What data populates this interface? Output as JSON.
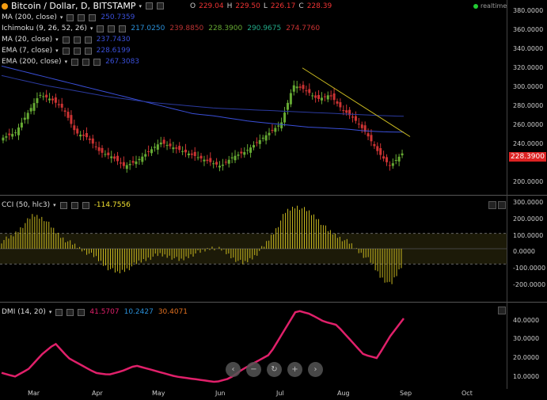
{
  "header": {
    "symbol": "Bitcoin / Dollar, D, BITSTAMP",
    "ohlc": [
      {
        "k": "O",
        "v": "229.04"
      },
      {
        "k": "H",
        "v": "229.50"
      },
      {
        "k": "L",
        "v": "226.17"
      },
      {
        "k": "C",
        "v": "228.39"
      }
    ],
    "realtime": "realtime"
  },
  "indicators": [
    {
      "name": "MA (200, close)",
      "values": [
        {
          "v": "250.7359",
          "color": "#3a4fd8"
        }
      ]
    },
    {
      "name": "Ichimoku (9, 26, 52, 26)",
      "values": [
        {
          "v": "217.0250",
          "color": "#2a8fd8"
        },
        {
          "v": "239.8850",
          "color": "#b33"
        },
        {
          "v": "228.3900",
          "color": "#6a3"
        },
        {
          "v": "290.9675",
          "color": "#2a8"
        },
        {
          "v": "274.7760",
          "color": "#c33"
        }
      ]
    },
    {
      "name": "MA (20, close)",
      "values": [
        {
          "v": "237.7430",
          "color": "#3a4fd8"
        }
      ]
    },
    {
      "name": "EMA (7, close)",
      "values": [
        {
          "v": "228.6199",
          "color": "#3a4fd8"
        }
      ]
    },
    {
      "name": "EMA (200, close)",
      "values": [
        {
          "v": "267.3083",
          "color": "#3a4fd8"
        }
      ]
    }
  ],
  "cci": {
    "name": "CCI (50, hlc3)",
    "value": "-114.7556",
    "value_color": "#f0e030"
  },
  "dmi": {
    "name": "DMI (14, 20)",
    "values": [
      {
        "v": "41.5707",
        "color": "#e0206a"
      },
      {
        "v": "10.2427",
        "color": "#2a8fd8"
      },
      {
        "v": "30.4071",
        "color": "#e07020"
      }
    ]
  },
  "price_axis": [
    "380.0000",
    "360.0000",
    "340.0000",
    "320.0000",
    "300.0000",
    "280.0000",
    "260.0000",
    "240.0000",
    "228.3900",
    "200.0000"
  ],
  "last_price": "228.3900",
  "cci_axis": [
    "300.0000",
    "200.0000",
    "100.0000",
    "0.0000",
    "-100.0000",
    "-200.0000"
  ],
  "dmi_axis": [
    "40.0000",
    "30.0000",
    "20.0000",
    "10.0000"
  ],
  "x_axis": [
    "Mar",
    "Apr",
    "May",
    "Jun",
    "Jul",
    "Aug",
    "Sep",
    "Oct"
  ],
  "nav_icons": [
    "arrow-left-icon",
    "zoom-out-icon",
    "reset-icon",
    "zoom-in-icon",
    "arrow-right-icon"
  ],
  "colors": {
    "up": "#6a3",
    "down": "#c33",
    "accent": "#e0206a",
    "cci": "#c8b820",
    "trendline": "#c8b820"
  },
  "chart_data": [
    {
      "type": "line",
      "title": "Bitcoin / Dollar, D, BITSTAMP",
      "x_ticks": [
        "Mar",
        "Apr",
        "May",
        "Jun",
        "Jul",
        "Aug",
        "Sep",
        "Oct"
      ],
      "ylim": [
        190,
        385
      ],
      "series": [
        {
          "name": "close",
          "values": [
            245,
            250,
            270,
            290,
            285,
            275,
            250,
            245,
            230,
            225,
            215,
            220,
            230,
            240,
            235,
            230,
            225,
            220,
            215,
            225,
            230,
            240,
            250,
            260,
            300,
            295,
            285,
            290,
            275,
            265,
            250,
            230,
            215,
            228.39
          ]
        },
        {
          "name": "MA (200, close)",
          "values": [
            320,
            315,
            310,
            305,
            300,
            295,
            290,
            285,
            280,
            275,
            270,
            268,
            265,
            262,
            260,
            258,
            256,
            255,
            254,
            252,
            251,
            250.7359
          ]
        },
        {
          "name": "EMA (200, close)",
          "values": [
            310,
            305,
            300,
            296,
            292,
            288,
            285,
            282,
            280,
            278,
            276,
            275,
            274,
            273,
            272,
            271,
            270,
            269,
            268,
            267.3083
          ]
        }
      ]
    },
    {
      "type": "bar",
      "title": "CCI (50, hlc3)",
      "ylim": [
        -300,
        300
      ],
      "values": [
        50,
        80,
        150,
        220,
        200,
        120,
        60,
        20,
        -20,
        -60,
        -120,
        -160,
        -130,
        -90,
        -60,
        -40,
        -50,
        -80,
        -40,
        -20,
        10,
        -10,
        -60,
        -100,
        -50,
        20,
        120,
        240,
        280,
        250,
        200,
        120,
        80,
        40,
        -20,
        -80,
        -180,
        -240,
        -114.7556
      ]
    },
    {
      "type": "line",
      "title": "DMI (14, 20)",
      "ylim": [
        5,
        48
      ],
      "series": [
        {
          "name": "ADX",
          "values": [
            12,
            10,
            14,
            22,
            28,
            20,
            16,
            12,
            11,
            13,
            16,
            14,
            12,
            10,
            9,
            8,
            7,
            9,
            14,
            18,
            22,
            34,
            46,
            44,
            40,
            38,
            30,
            22,
            20,
            32,
            41.5707
          ]
        }
      ]
    }
  ]
}
